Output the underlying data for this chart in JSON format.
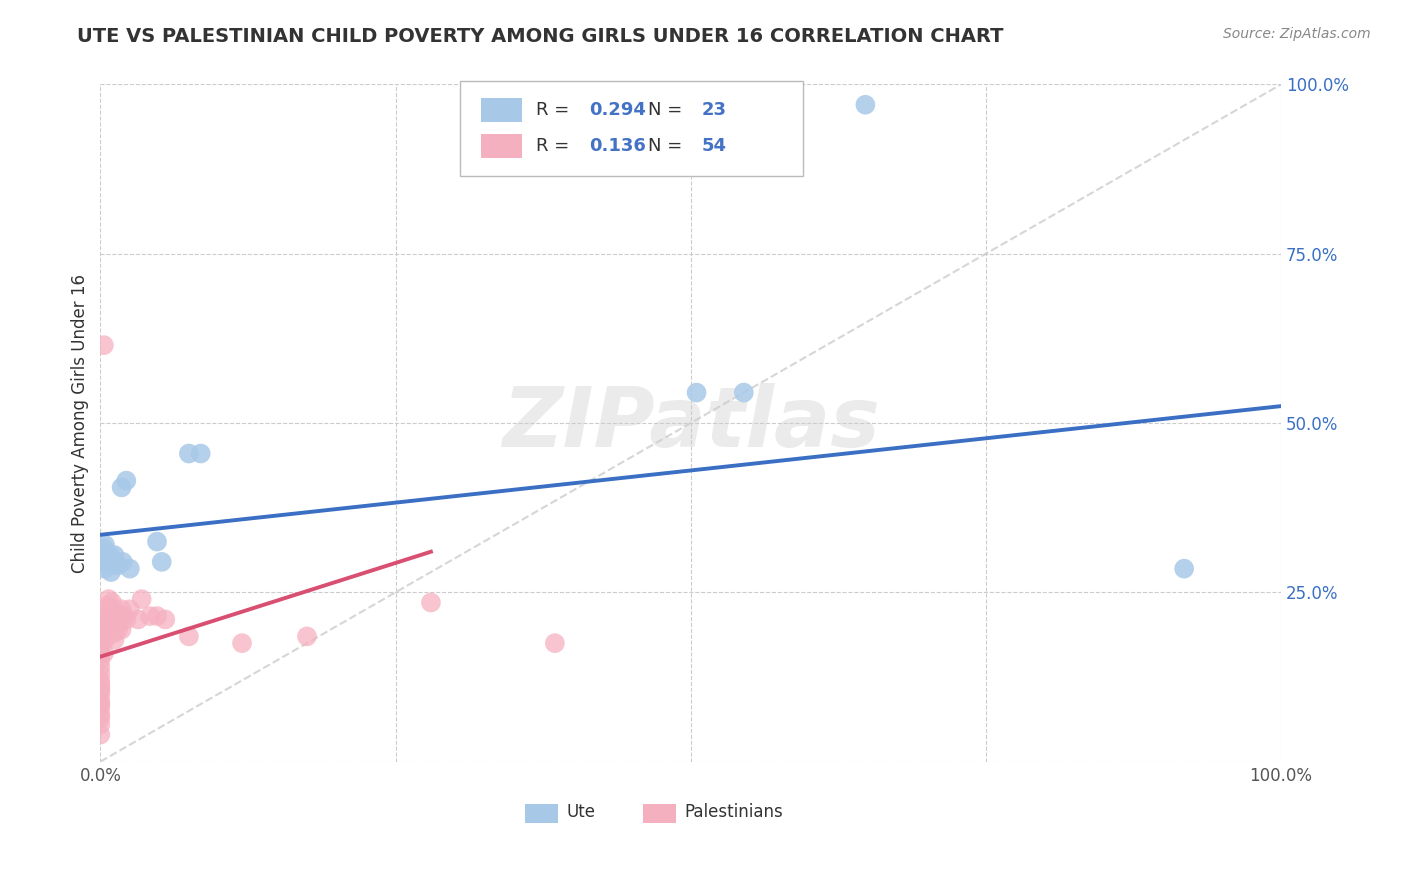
{
  "title": "UTE VS PALESTINIAN CHILD POVERTY AMONG GIRLS UNDER 16 CORRELATION CHART",
  "source": "Source: ZipAtlas.com",
  "ylabel": "Child Poverty Among Girls Under 16",
  "watermark": "ZIPatlas",
  "xlim": [
    0,
    1
  ],
  "ylim": [
    0,
    1
  ],
  "ute_R": 0.294,
  "ute_N": 23,
  "pal_R": 0.136,
  "pal_N": 54,
  "ute_color": "#a8c8e8",
  "pal_color": "#f5b0c0",
  "ute_line_color": "#3a6fc4",
  "pal_line_color": "#d94f72",
  "legend_label_ute": "Ute",
  "legend_label_pal": "Palestinians",
  "r_color": "#4472c4",
  "n_color": "#4472c4",
  "ute_x": [
    0.003,
    0.003,
    0.003,
    0.004,
    0.004,
    0.008,
    0.008,
    0.009,
    0.009,
    0.012,
    0.015,
    0.018,
    0.019,
    0.022,
    0.025,
    0.048,
    0.052,
    0.075,
    0.085,
    0.505,
    0.545,
    0.648,
    0.918
  ],
  "ute_y": [
    0.295,
    0.305,
    0.315,
    0.285,
    0.32,
    0.295,
    0.305,
    0.295,
    0.28,
    0.305,
    0.29,
    0.405,
    0.295,
    0.415,
    0.285,
    0.325,
    0.295,
    0.455,
    0.455,
    0.545,
    0.545,
    0.97,
    0.285
  ],
  "pal_x": [
    0.0,
    0.0,
    0.0,
    0.0,
    0.0,
    0.0,
    0.0,
    0.0,
    0.0,
    0.0,
    0.0,
    0.0,
    0.0,
    0.0,
    0.0,
    0.0,
    0.0,
    0.003,
    0.003,
    0.004,
    0.004,
    0.005,
    0.005,
    0.006,
    0.006,
    0.007,
    0.008,
    0.008,
    0.009,
    0.009,
    0.01,
    0.01,
    0.012,
    0.012,
    0.013,
    0.015,
    0.015,
    0.016,
    0.016,
    0.018,
    0.018,
    0.02,
    0.022,
    0.025,
    0.032,
    0.035,
    0.042,
    0.048,
    0.055,
    0.075,
    0.12,
    0.175,
    0.28,
    0.385
  ],
  "pal_y": [
    0.04,
    0.055,
    0.065,
    0.07,
    0.08,
    0.085,
    0.09,
    0.1,
    0.105,
    0.11,
    0.115,
    0.12,
    0.13,
    0.14,
    0.15,
    0.16,
    0.17,
    0.16,
    0.18,
    0.18,
    0.19,
    0.2,
    0.21,
    0.22,
    0.23,
    0.24,
    0.19,
    0.205,
    0.21,
    0.22,
    0.225,
    0.235,
    0.18,
    0.19,
    0.21,
    0.195,
    0.21,
    0.205,
    0.215,
    0.195,
    0.225,
    0.215,
    0.21,
    0.225,
    0.21,
    0.24,
    0.215,
    0.215,
    0.21,
    0.185,
    0.175,
    0.185,
    0.235,
    0.175
  ],
  "pal_outlier_x": [
    0.003
  ],
  "pal_outlier_y": [
    0.615
  ],
  "ute_line_x0": 0.0,
  "ute_line_y0": 0.335,
  "ute_line_x1": 1.0,
  "ute_line_y1": 0.525,
  "pal_line_x0": 0.0,
  "pal_line_y0": 0.155,
  "pal_line_x1": 0.28,
  "pal_line_y1": 0.31,
  "ref_line_x0": 0.0,
  "ref_line_y0": 0.0,
  "ref_line_x1": 1.0,
  "ref_line_y1": 1.0
}
